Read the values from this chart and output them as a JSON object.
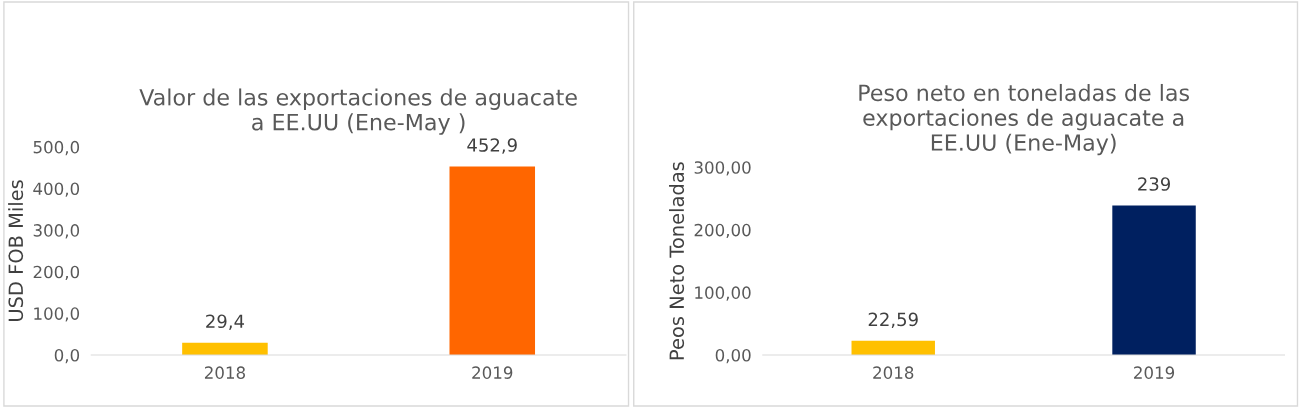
{
  "chart_data": [
    {
      "type": "bar",
      "title": "Valor de las exportaciones de aguacate\na EE.UU (Ene-May )",
      "ylabel": "USD FOB Miles",
      "categories": [
        "2018",
        "2019"
      ],
      "values": [
        29.4,
        452.9
      ],
      "colors": [
        "#ffc000",
        "#ff6600"
      ],
      "value_labels": [
        "29,4",
        "452,9"
      ],
      "ylim": [
        0,
        500
      ],
      "yticks": [
        {
          "value": 0,
          "label": "0,0"
        },
        {
          "value": 100,
          "label": "100,0"
        },
        {
          "value": 200,
          "label": "200,0"
        },
        {
          "value": 300,
          "label": "300,0"
        },
        {
          "value": 400,
          "label": "400,0"
        },
        {
          "value": 500,
          "label": "500,0"
        }
      ],
      "grid": false,
      "legend": false
    },
    {
      "type": "bar",
      "title": "Peso neto en toneladas de las\nexportaciones de aguacate a\nEE.UU (Ene-May)",
      "ylabel": "Peos Neto Toneladas",
      "categories": [
        "2018",
        "2019"
      ],
      "values": [
        22.59,
        239
      ],
      "colors": [
        "#ffc000",
        "#002060"
      ],
      "value_labels": [
        "22,59",
        "239"
      ],
      "ylim": [
        0,
        300
      ],
      "yticks": [
        {
          "value": 0,
          "label": "0,00"
        },
        {
          "value": 100,
          "label": "100,00"
        },
        {
          "value": 200,
          "label": "200,00"
        },
        {
          "value": 300,
          "label": "300,00"
        }
      ],
      "grid": false,
      "legend": false
    }
  ]
}
